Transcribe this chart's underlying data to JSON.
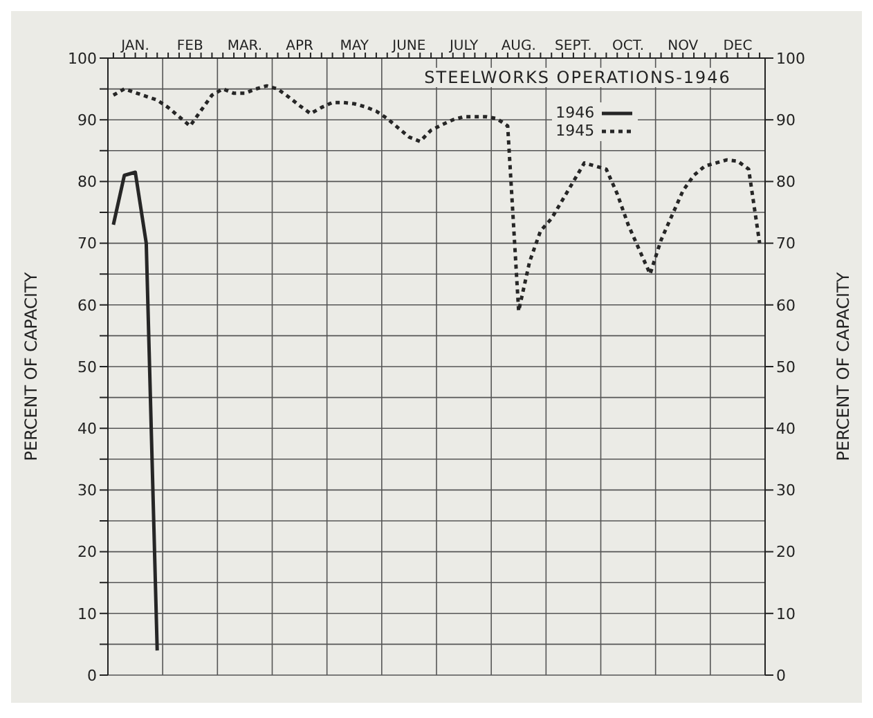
{
  "chart_data": {
    "type": "line",
    "title": "STEELWORKS OPERATIONS-1946",
    "ylabel": "PERCENT OF CAPACITY",
    "y2label": "PERCENT OF CAPACITY",
    "categories": [
      null,
      null,
      "JAN.",
      null,
      null,
      null,
      null,
      "FEB",
      null,
      null,
      null,
      null,
      "MAR.",
      null,
      null,
      null,
      null,
      "APR",
      null,
      null,
      null,
      null,
      "MAY",
      null,
      null,
      null,
      null,
      "JUNE",
      null,
      null,
      null,
      null,
      "JULY",
      null,
      null,
      null,
      null,
      "AUG.",
      null,
      null,
      null,
      null,
      "SEPT.",
      null,
      null,
      null,
      null,
      "OCT.",
      null,
      null,
      null,
      null,
      "NOV",
      null,
      null,
      null,
      null,
      "DEC",
      null,
      null
    ],
    "ylim": [
      0,
      100
    ],
    "yticks": [
      0,
      {
        "value": 5,
        "label": null
      },
      10,
      {
        "value": 15,
        "label": null
      },
      20,
      {
        "value": 25,
        "label": null
      },
      30,
      {
        "value": 35,
        "label": null
      },
      40,
      {
        "value": 45,
        "label": null
      },
      50,
      {
        "value": 55,
        "label": null
      },
      60,
      {
        "value": 65,
        "label": null
      },
      70,
      {
        "value": 75,
        "label": null
      },
      80,
      {
        "value": 85,
        "label": null
      },
      90,
      {
        "value": 95,
        "label": null
      },
      100
    ],
    "y2lim": [
      0,
      100
    ],
    "y2ticks": [
      0,
      10,
      20,
      30,
      40,
      50,
      60,
      70,
      80,
      90,
      100
    ],
    "grid": true,
    "legend": "top",
    "marker": "none",
    "series": [
      {
        "name": "1946",
        "color": "#262626",
        "line_style": "solid",
        "values": [
          73,
          81,
          81.5,
          70,
          4,
          null,
          null,
          null,
          null,
          null,
          null,
          null,
          null,
          null,
          null,
          null,
          null,
          null,
          null,
          null,
          null,
          null,
          null,
          null,
          null,
          null,
          null,
          null,
          null,
          null,
          null,
          null,
          null,
          null,
          null,
          null,
          null,
          null,
          null,
          null,
          null,
          null,
          null,
          null,
          null,
          null,
          null,
          null,
          null,
          null,
          null,
          null,
          null,
          null,
          null,
          null,
          null,
          null,
          null,
          null
        ]
      },
      {
        "name": "1945",
        "color": "#262626",
        "line_style": "dotted",
        "values": [
          94,
          95,
          94.4,
          93.8,
          93.2,
          92,
          90.5,
          89,
          91.5,
          94,
          95,
          94.3,
          94.3,
          95,
          95.5,
          95,
          93.7,
          92.3,
          91,
          92,
          92.8,
          92.8,
          92.6,
          92.1,
          91.4,
          90.2,
          88.7,
          87.2,
          86.5,
          88.3,
          89.2,
          90,
          90.5,
          90.5,
          90.5,
          90.2,
          89,
          59,
          67,
          72,
          74,
          77,
          80,
          83,
          82.5,
          82,
          78,
          73,
          69,
          65,
          70.5,
          74.5,
          78.5,
          81,
          82.5,
          83,
          83.5,
          83.3,
          82,
          70
        ]
      }
    ]
  }
}
